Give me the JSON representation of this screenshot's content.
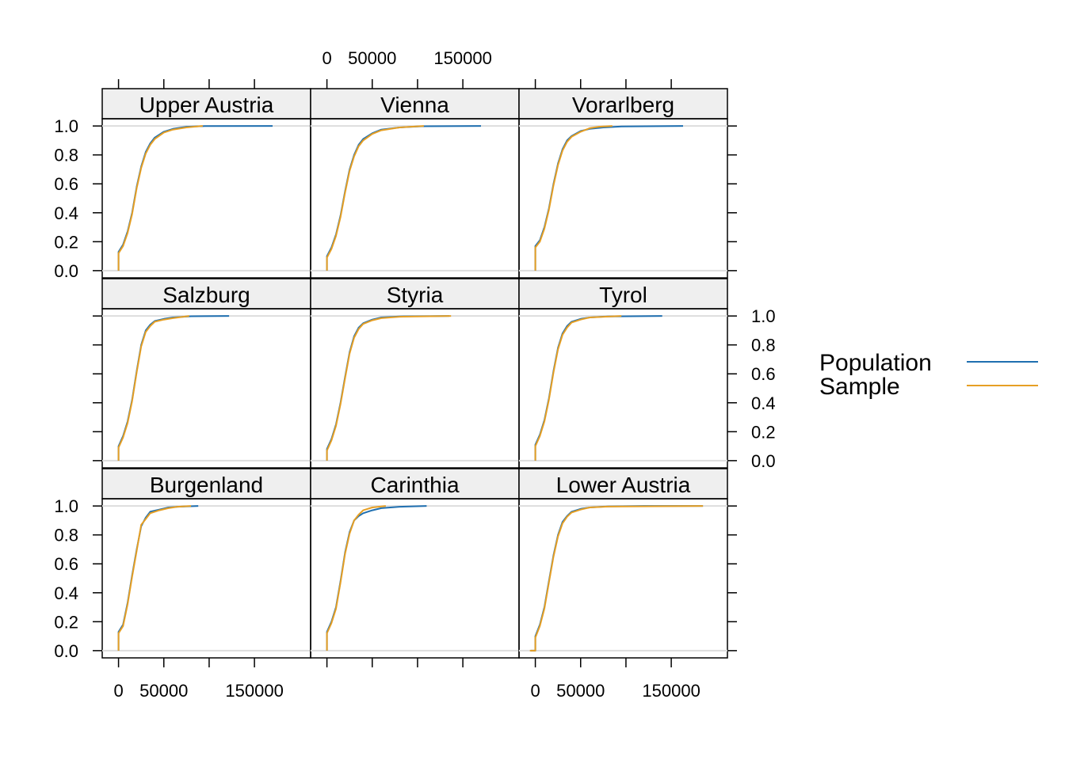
{
  "chart_data": {
    "type": "line",
    "plot_kind": "empirical cumulative distribution function (ECDF)",
    "layout": "3x3 lattice panels",
    "xlim": [
      -18000,
      212000
    ],
    "ylim": [
      0,
      1
    ],
    "x_ticks": [
      0,
      50000,
      100000,
      150000
    ],
    "x_tick_labels": [
      "0",
      "50000",
      "",
      "150000"
    ],
    "y_ticks": [
      0,
      0.2,
      0.4,
      0.6,
      0.8,
      1.0
    ],
    "y_tick_labels": [
      "0.0",
      "0.2",
      "0.4",
      "0.6",
      "0.8",
      "1.0"
    ],
    "grid": "horizontal reference line at y = 1.0",
    "legend": {
      "placement": "right",
      "entries": [
        {
          "label": "Population",
          "color": "#1f6fb0"
        },
        {
          "label": "Sample",
          "color": "#e69f24"
        }
      ]
    },
    "series_colors": {
      "Population": "#1f6fb0",
      "Sample": "#e69f24"
    },
    "panels": [
      {
        "title": "Upper Austria",
        "population": [
          [
            0,
            0
          ],
          [
            0,
            0.13
          ],
          [
            5000,
            0.18
          ],
          [
            10000,
            0.27
          ],
          [
            15000,
            0.4
          ],
          [
            20000,
            0.58
          ],
          [
            25000,
            0.72
          ],
          [
            30000,
            0.82
          ],
          [
            35000,
            0.88
          ],
          [
            40000,
            0.92
          ],
          [
            50000,
            0.96
          ],
          [
            60000,
            0.98
          ],
          [
            75000,
            0.995
          ],
          [
            95000,
            0.999
          ],
          [
            170000,
            1.0
          ]
        ],
        "sample": [
          [
            0,
            0
          ],
          [
            0,
            0.12
          ],
          [
            5000,
            0.17
          ],
          [
            10000,
            0.26
          ],
          [
            15000,
            0.39
          ],
          [
            20000,
            0.57
          ],
          [
            25000,
            0.71
          ],
          [
            30000,
            0.81
          ],
          [
            35000,
            0.87
          ],
          [
            40000,
            0.91
          ],
          [
            50000,
            0.955
          ],
          [
            60000,
            0.975
          ],
          [
            75000,
            0.99
          ],
          [
            93000,
            1.0
          ]
        ]
      },
      {
        "title": "Vienna",
        "population": [
          [
            0,
            0
          ],
          [
            0,
            0.1
          ],
          [
            5000,
            0.16
          ],
          [
            10000,
            0.25
          ],
          [
            15000,
            0.38
          ],
          [
            20000,
            0.55
          ],
          [
            25000,
            0.7
          ],
          [
            30000,
            0.8
          ],
          [
            35000,
            0.87
          ],
          [
            40000,
            0.91
          ],
          [
            50000,
            0.95
          ],
          [
            60000,
            0.975
          ],
          [
            80000,
            0.99
          ],
          [
            105000,
            0.998
          ],
          [
            170000,
            1.0
          ]
        ],
        "sample": [
          [
            0,
            0
          ],
          [
            0,
            0.09
          ],
          [
            5000,
            0.15
          ],
          [
            10000,
            0.24
          ],
          [
            15000,
            0.37
          ],
          [
            20000,
            0.54
          ],
          [
            25000,
            0.69
          ],
          [
            30000,
            0.79
          ],
          [
            35000,
            0.86
          ],
          [
            40000,
            0.9
          ],
          [
            50000,
            0.945
          ],
          [
            60000,
            0.97
          ],
          [
            80000,
            0.99
          ],
          [
            107000,
            1.0
          ]
        ]
      },
      {
        "title": "Vorarlberg",
        "population": [
          [
            0,
            0
          ],
          [
            0,
            0.17
          ],
          [
            5000,
            0.21
          ],
          [
            10000,
            0.3
          ],
          [
            15000,
            0.43
          ],
          [
            20000,
            0.6
          ],
          [
            25000,
            0.74
          ],
          [
            30000,
            0.84
          ],
          [
            35000,
            0.9
          ],
          [
            40000,
            0.93
          ],
          [
            50000,
            0.965
          ],
          [
            60000,
            0.98
          ],
          [
            75000,
            0.99
          ],
          [
            95000,
            0.997
          ],
          [
            163000,
            1.0
          ]
        ],
        "sample": [
          [
            0,
            0
          ],
          [
            0,
            0.16
          ],
          [
            5000,
            0.2
          ],
          [
            10000,
            0.29
          ],
          [
            15000,
            0.42
          ],
          [
            20000,
            0.59
          ],
          [
            25000,
            0.73
          ],
          [
            30000,
            0.83
          ],
          [
            35000,
            0.89
          ],
          [
            40000,
            0.925
          ],
          [
            50000,
            0.96
          ],
          [
            60000,
            0.985
          ],
          [
            70000,
            0.995
          ],
          [
            85000,
            1.0
          ]
        ]
      },
      {
        "title": "Salzburg",
        "population": [
          [
            0,
            0
          ],
          [
            0,
            0.1
          ],
          [
            5000,
            0.17
          ],
          [
            10000,
            0.27
          ],
          [
            15000,
            0.42
          ],
          [
            20000,
            0.62
          ],
          [
            25000,
            0.8
          ],
          [
            30000,
            0.9
          ],
          [
            35000,
            0.94
          ],
          [
            40000,
            0.965
          ],
          [
            50000,
            0.98
          ],
          [
            60000,
            0.99
          ],
          [
            80000,
            0.998
          ],
          [
            122000,
            1.0
          ]
        ],
        "sample": [
          [
            0,
            0
          ],
          [
            0,
            0.09
          ],
          [
            5000,
            0.16
          ],
          [
            10000,
            0.26
          ],
          [
            15000,
            0.41
          ],
          [
            20000,
            0.61
          ],
          [
            25000,
            0.79
          ],
          [
            30000,
            0.89
          ],
          [
            35000,
            0.93
          ],
          [
            40000,
            0.96
          ],
          [
            50000,
            0.975
          ],
          [
            60000,
            0.985
          ],
          [
            78000,
            1.0
          ]
        ]
      },
      {
        "title": "Styria",
        "population": [
          [
            0,
            0
          ],
          [
            0,
            0.08
          ],
          [
            5000,
            0.15
          ],
          [
            10000,
            0.25
          ],
          [
            15000,
            0.4
          ],
          [
            20000,
            0.58
          ],
          [
            25000,
            0.75
          ],
          [
            30000,
            0.86
          ],
          [
            35000,
            0.92
          ],
          [
            40000,
            0.95
          ],
          [
            50000,
            0.975
          ],
          [
            60000,
            0.99
          ],
          [
            80000,
            0.997
          ],
          [
            135000,
            1.0
          ]
        ],
        "sample": [
          [
            0,
            0
          ],
          [
            0,
            0.07
          ],
          [
            5000,
            0.14
          ],
          [
            10000,
            0.24
          ],
          [
            15000,
            0.39
          ],
          [
            20000,
            0.57
          ],
          [
            25000,
            0.74
          ],
          [
            30000,
            0.85
          ],
          [
            35000,
            0.91
          ],
          [
            40000,
            0.945
          ],
          [
            50000,
            0.97
          ],
          [
            60000,
            0.985
          ],
          [
            80000,
            0.995
          ],
          [
            137000,
            1.0
          ]
        ]
      },
      {
        "title": "Tyrol",
        "population": [
          [
            0,
            0
          ],
          [
            0,
            0.11
          ],
          [
            5000,
            0.18
          ],
          [
            10000,
            0.28
          ],
          [
            15000,
            0.43
          ],
          [
            20000,
            0.62
          ],
          [
            25000,
            0.78
          ],
          [
            30000,
            0.88
          ],
          [
            35000,
            0.93
          ],
          [
            40000,
            0.96
          ],
          [
            50000,
            0.98
          ],
          [
            60000,
            0.99
          ],
          [
            80000,
            0.997
          ],
          [
            140000,
            1.0
          ]
        ],
        "sample": [
          [
            0,
            0
          ],
          [
            0,
            0.1
          ],
          [
            5000,
            0.17
          ],
          [
            10000,
            0.27
          ],
          [
            15000,
            0.42
          ],
          [
            20000,
            0.61
          ],
          [
            25000,
            0.77
          ],
          [
            30000,
            0.87
          ],
          [
            35000,
            0.92
          ],
          [
            40000,
            0.955
          ],
          [
            50000,
            0.975
          ],
          [
            60000,
            0.99
          ],
          [
            95000,
            1.0
          ]
        ]
      },
      {
        "title": "Burgenland",
        "population": [
          [
            0,
            0
          ],
          [
            0,
            0.13
          ],
          [
            5000,
            0.18
          ],
          [
            10000,
            0.33
          ],
          [
            15000,
            0.52
          ],
          [
            20000,
            0.7
          ],
          [
            25000,
            0.86
          ],
          [
            30000,
            0.92
          ],
          [
            35000,
            0.96
          ],
          [
            45000,
            0.975
          ],
          [
            55000,
            0.99
          ],
          [
            65000,
            0.995
          ],
          [
            88000,
            1.0
          ]
        ],
        "sample": [
          [
            0,
            0
          ],
          [
            0,
            0.12
          ],
          [
            5000,
            0.17
          ],
          [
            10000,
            0.32
          ],
          [
            15000,
            0.51
          ],
          [
            20000,
            0.69
          ],
          [
            25000,
            0.87
          ],
          [
            30000,
            0.91
          ],
          [
            35000,
            0.95
          ],
          [
            45000,
            0.97
          ],
          [
            55000,
            0.985
          ],
          [
            65000,
            0.995
          ],
          [
            80000,
            1.0
          ]
        ]
      },
      {
        "title": "Carinthia",
        "population": [
          [
            0,
            0
          ],
          [
            0,
            0.13
          ],
          [
            5000,
            0.2
          ],
          [
            10000,
            0.3
          ],
          [
            15000,
            0.48
          ],
          [
            20000,
            0.68
          ],
          [
            25000,
            0.82
          ],
          [
            30000,
            0.9
          ],
          [
            35000,
            0.93
          ],
          [
            40000,
            0.95
          ],
          [
            50000,
            0.97
          ],
          [
            60000,
            0.985
          ],
          [
            80000,
            0.995
          ],
          [
            110000,
            1.0
          ]
        ],
        "sample": [
          [
            0,
            0
          ],
          [
            0,
            0.12
          ],
          [
            5000,
            0.19
          ],
          [
            10000,
            0.29
          ],
          [
            15000,
            0.47
          ],
          [
            20000,
            0.67
          ],
          [
            25000,
            0.81
          ],
          [
            30000,
            0.9
          ],
          [
            35000,
            0.94
          ],
          [
            40000,
            0.97
          ],
          [
            50000,
            0.99
          ],
          [
            65000,
            1.0
          ]
        ]
      },
      {
        "title": "Lower Austria",
        "population": [
          [
            -5000,
            0
          ],
          [
            0,
            0
          ],
          [
            0,
            0.1
          ],
          [
            5000,
            0.18
          ],
          [
            10000,
            0.3
          ],
          [
            15000,
            0.48
          ],
          [
            20000,
            0.66
          ],
          [
            25000,
            0.8
          ],
          [
            30000,
            0.89
          ],
          [
            35000,
            0.93
          ],
          [
            40000,
            0.96
          ],
          [
            50000,
            0.98
          ],
          [
            60000,
            0.99
          ],
          [
            80000,
            0.997
          ],
          [
            120000,
            1.0
          ],
          [
            185000,
            1.0
          ]
        ],
        "sample": [
          [
            -6000,
            0
          ],
          [
            0,
            0
          ],
          [
            0,
            0.09
          ],
          [
            5000,
            0.17
          ],
          [
            10000,
            0.29
          ],
          [
            15000,
            0.47
          ],
          [
            20000,
            0.65
          ],
          [
            25000,
            0.79
          ],
          [
            30000,
            0.88
          ],
          [
            35000,
            0.925
          ],
          [
            40000,
            0.955
          ],
          [
            50000,
            0.975
          ],
          [
            60000,
            0.99
          ],
          [
            80000,
            0.996
          ],
          [
            185000,
            1.0
          ]
        ]
      }
    ]
  },
  "legend": {
    "population_label": "Population",
    "sample_label": "Sample"
  }
}
